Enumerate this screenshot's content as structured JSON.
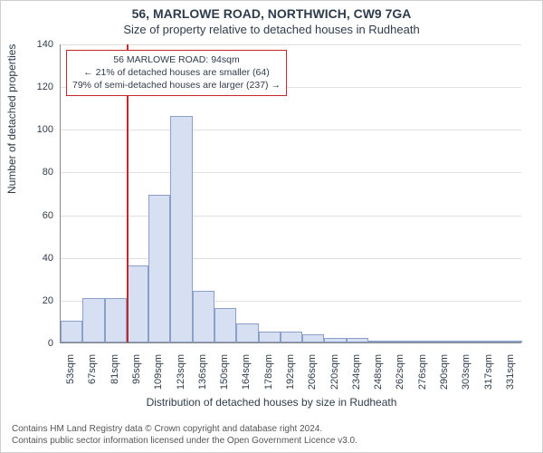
{
  "title_main": "56, MARLOWE ROAD, NORTHWICH, CW9 7GA",
  "title_sub": "Size of property relative to detached houses in Rudheath",
  "y_axis_title": "Number of detached properties",
  "x_axis_title": "Distribution of detached houses by size in Rudheath",
  "footer_line1": "Contains HM Land Registry data © Crown copyright and database right 2024.",
  "footer_line2": "Contains public sector information licensed under the Open Government Licence v3.0.",
  "callout": {
    "line1": "56 MARLOWE ROAD: 94sqm",
    "line2": "← 21% of detached houses are smaller (64)",
    "line3": "79% of semi-detached houses are larger (237) →"
  },
  "chart": {
    "type": "histogram",
    "ylim": [
      0,
      140
    ],
    "ytick_step": 20,
    "x_categories": [
      "53sqm",
      "67sqm",
      "81sqm",
      "95sqm",
      "109sqm",
      "123sqm",
      "136sqm",
      "150sqm",
      "164sqm",
      "178sqm",
      "192sqm",
      "206sqm",
      "220sqm",
      "234sqm",
      "248sqm",
      "262sqm",
      "276sqm",
      "290sqm",
      "303sqm",
      "317sqm",
      "331sqm"
    ],
    "values": [
      10,
      21,
      21,
      36,
      69,
      106,
      24,
      16,
      9,
      5,
      5,
      4,
      2,
      2,
      0,
      0,
      1,
      0,
      0,
      0,
      1
    ],
    "reference_line_index": 3,
    "bar_fill": "#d6e0f2",
    "bar_border": "#8aa0c8",
    "grid_color": "#e0e0e0",
    "axis_color": "#888888",
    "ref_color": "#c62828",
    "background": "#ffffff",
    "bar_width_ratio": 1.0,
    "title_fontsize": 14,
    "subtitle_fontsize": 13,
    "axis_title_fontsize": 12,
    "tick_fontsize": 11,
    "callout_fontsize": 10.5
  }
}
